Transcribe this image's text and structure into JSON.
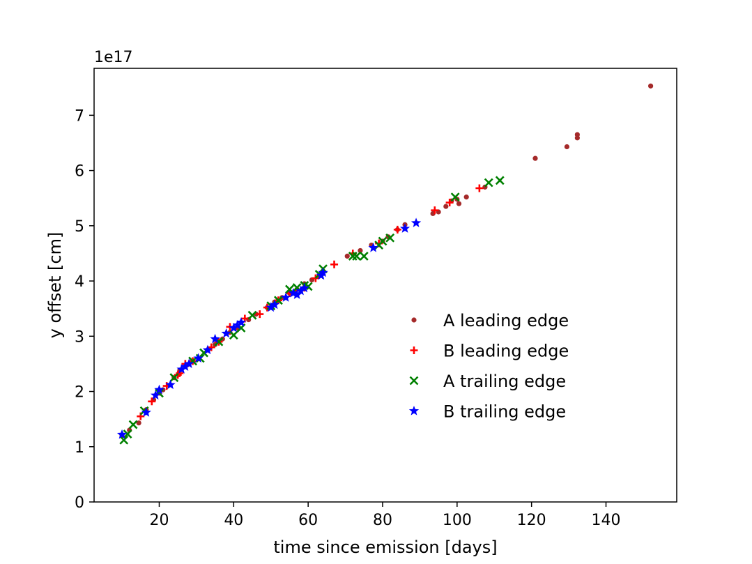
{
  "chart_data": {
    "type": "scatter",
    "title": "",
    "xlabel": "time since emission [days]",
    "ylabel": "y offset [cm]",
    "y_multiplier_label": "1e17",
    "xlim": [
      2.5,
      159
    ],
    "ylim": [
      0,
      7.85
    ],
    "x_ticks": [
      20,
      40,
      60,
      80,
      100,
      120,
      140
    ],
    "y_ticks": [
      0,
      1,
      2,
      3,
      4,
      5,
      6,
      7
    ],
    "grid": false,
    "legend_position": "lower-right",
    "series": [
      {
        "name": "A leading edge",
        "marker": "dot",
        "color": "#a52a2a",
        "points": [
          [
            10,
            1.2
          ],
          [
            12,
            1.3
          ],
          [
            14.5,
            1.43
          ],
          [
            16.5,
            1.67
          ],
          [
            18.5,
            1.85
          ],
          [
            20,
            1.97
          ],
          [
            21,
            2.03
          ],
          [
            24,
            2.25
          ],
          [
            25.5,
            2.38
          ],
          [
            27.5,
            2.48
          ],
          [
            29,
            2.55
          ],
          [
            33,
            2.75
          ],
          [
            35,
            2.85
          ],
          [
            37,
            2.95
          ],
          [
            39,
            3.07
          ],
          [
            41,
            3.15
          ],
          [
            44,
            3.3
          ],
          [
            46,
            3.4
          ],
          [
            49,
            3.52
          ],
          [
            51,
            3.62
          ],
          [
            53,
            3.7
          ],
          [
            55,
            3.78
          ],
          [
            57,
            3.85
          ],
          [
            59,
            3.95
          ],
          [
            61,
            4.02
          ],
          [
            63,
            4.1
          ],
          [
            70.5,
            4.45
          ],
          [
            74,
            4.55
          ],
          [
            77,
            4.65
          ],
          [
            80,
            4.72
          ],
          [
            81.5,
            4.8
          ],
          [
            84,
            4.93
          ],
          [
            86,
            5.02
          ],
          [
            93.5,
            5.22
          ],
          [
            95,
            5.25
          ],
          [
            97,
            5.35
          ],
          [
            98.5,
            5.45
          ],
          [
            100,
            5.48
          ],
          [
            100.5,
            5.4
          ],
          [
            102.5,
            5.52
          ],
          [
            107.5,
            5.7
          ],
          [
            121,
            6.22
          ],
          [
            129.5,
            6.43
          ],
          [
            132.3,
            6.59
          ],
          [
            132.3,
            6.65
          ],
          [
            152,
            7.53
          ]
        ]
      },
      {
        "name": "B leading edge",
        "marker": "plus",
        "color": "#ff0000",
        "points": [
          [
            15,
            1.55
          ],
          [
            18,
            1.82
          ],
          [
            22,
            2.1
          ],
          [
            25,
            2.3
          ],
          [
            25.5,
            2.33
          ],
          [
            27,
            2.5
          ],
          [
            29,
            2.55
          ],
          [
            34,
            2.8
          ],
          [
            36,
            2.9
          ],
          [
            39,
            3.17
          ],
          [
            43,
            3.32
          ],
          [
            47,
            3.4
          ],
          [
            49,
            3.52
          ],
          [
            52,
            3.65
          ],
          [
            55,
            3.78
          ],
          [
            57,
            3.83
          ],
          [
            59,
            3.88
          ],
          [
            62,
            4.05
          ],
          [
            67,
            4.3
          ],
          [
            72,
            4.5
          ],
          [
            79,
            4.68
          ],
          [
            84,
            4.93
          ],
          [
            94,
            5.28
          ],
          [
            98,
            5.42
          ],
          [
            106,
            5.68
          ]
        ]
      },
      {
        "name": "A trailing edge",
        "marker": "x",
        "color": "#008000",
        "points": [
          [
            10.5,
            1.12
          ],
          [
            11.5,
            1.23
          ],
          [
            13,
            1.4
          ],
          [
            16,
            1.65
          ],
          [
            20,
            1.97
          ],
          [
            24,
            2.25
          ],
          [
            29,
            2.55
          ],
          [
            31,
            2.6
          ],
          [
            32,
            2.7
          ],
          [
            36,
            2.9
          ],
          [
            40,
            3.02
          ],
          [
            42,
            3.15
          ],
          [
            45,
            3.38
          ],
          [
            50,
            3.55
          ],
          [
            52,
            3.65
          ],
          [
            55,
            3.85
          ],
          [
            57,
            3.88
          ],
          [
            59,
            3.92
          ],
          [
            60,
            3.9
          ],
          [
            63,
            4.12
          ],
          [
            64,
            4.22
          ],
          [
            72,
            4.45
          ],
          [
            73,
            4.45
          ],
          [
            75,
            4.45
          ],
          [
            79,
            4.65
          ],
          [
            80,
            4.72
          ],
          [
            82,
            4.78
          ],
          [
            99.5,
            5.52
          ],
          [
            108.5,
            5.78
          ],
          [
            111.5,
            5.82
          ]
        ]
      },
      {
        "name": "B trailing edge",
        "marker": "star",
        "color": "#0000ff",
        "points": [
          [
            10,
            1.22
          ],
          [
            16.5,
            1.62
          ],
          [
            19,
            1.93
          ],
          [
            20,
            2.03
          ],
          [
            23,
            2.12
          ],
          [
            26,
            2.4
          ],
          [
            27,
            2.45
          ],
          [
            28,
            2.5
          ],
          [
            30.5,
            2.6
          ],
          [
            33,
            2.75
          ],
          [
            35,
            2.95
          ],
          [
            38,
            3.05
          ],
          [
            40,
            3.15
          ],
          [
            41,
            3.2
          ],
          [
            42,
            3.25
          ],
          [
            50,
            3.52
          ],
          [
            51,
            3.57
          ],
          [
            54,
            3.7
          ],
          [
            56,
            3.78
          ],
          [
            57,
            3.75
          ],
          [
            58,
            3.82
          ],
          [
            59,
            3.87
          ],
          [
            63.5,
            4.1
          ],
          [
            64,
            4.15
          ],
          [
            77.5,
            4.6
          ],
          [
            86,
            4.95
          ],
          [
            89,
            5.05
          ]
        ]
      }
    ]
  }
}
